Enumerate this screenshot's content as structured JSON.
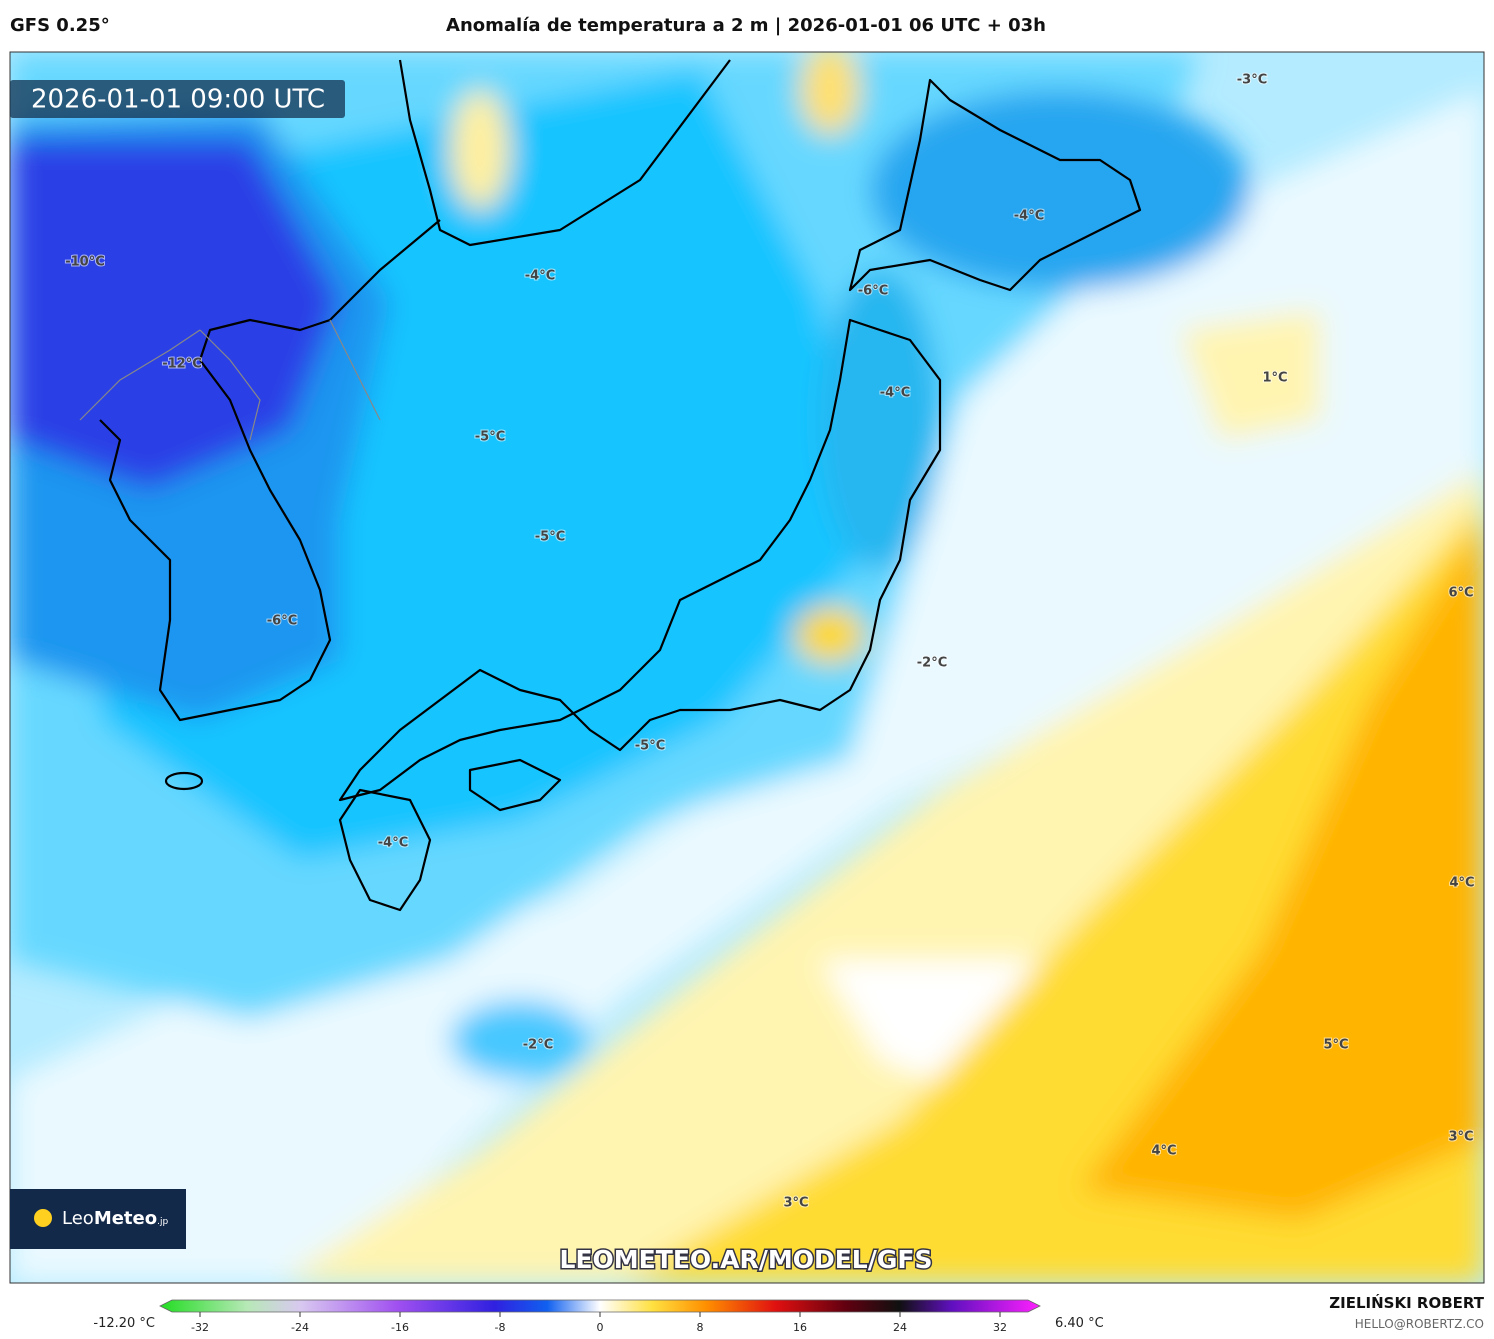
{
  "header": {
    "model": "GFS 0.25°",
    "title": "Anomalía de temperatura a 2 m | 2026-01-01 06 UTC + 03h"
  },
  "map": {
    "timestamp": "2026-01-01 09:00 UTC",
    "contour_labels": [
      "-10°C",
      "-12°C",
      "-4°C",
      "-5°C",
      "-5°C",
      "-6°C",
      "-6°C",
      "-4°C",
      "-3°C",
      "-4°C",
      "1°C",
      "6°C",
      "-2°C",
      "-5°C",
      "-4°C",
      "4°C",
      "-2°C",
      "5°C",
      "3°C",
      "4°C",
      "3°C"
    ],
    "watermark": "LEOMETEO.AR/MODEL/GFS"
  },
  "logo": {
    "leo": "Leo",
    "meteo": "Meteo",
    "suffix": ".jp"
  },
  "colorbar": {
    "min_label": "-12.20 °C",
    "max_label": "6.40 °C",
    "range": [
      -35.2,
      35.2
    ],
    "ticks": [
      -32,
      -24,
      -16,
      -8,
      0,
      8,
      16,
      24,
      32
    ]
  },
  "author": {
    "name": "ZIELIŃSKI ROBERT",
    "email": "HELLO@ROBERTZ.CO"
  }
}
